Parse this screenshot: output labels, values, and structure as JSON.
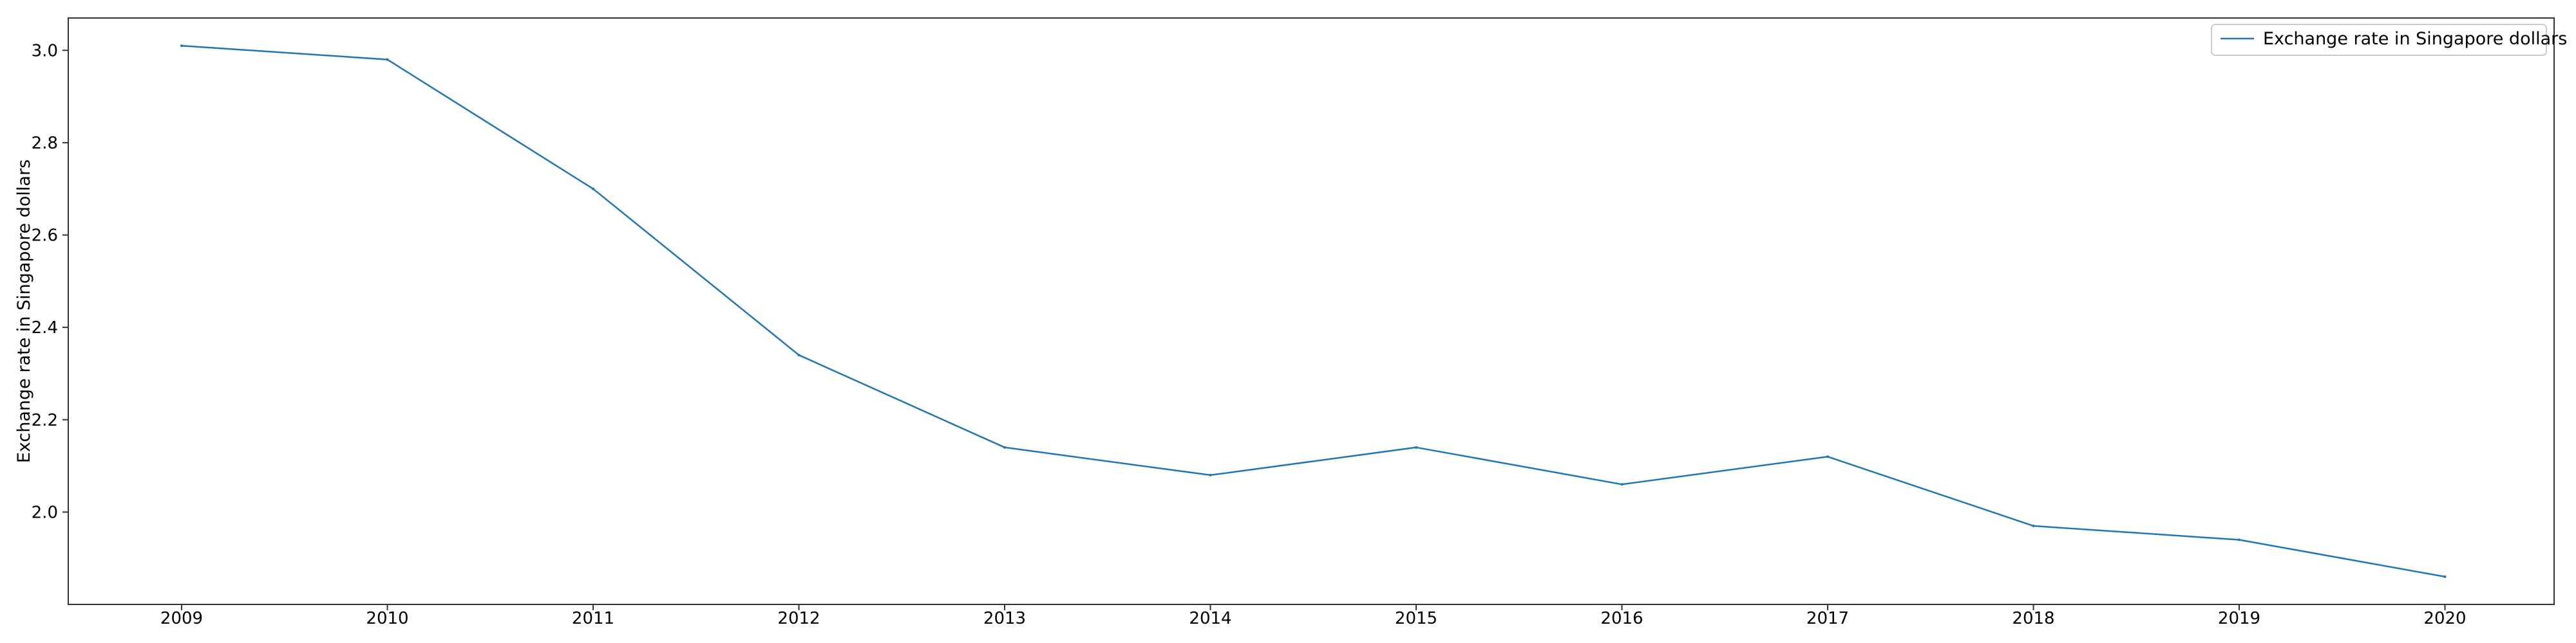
{
  "chart_data": {
    "type": "line",
    "title": "",
    "xlabel": "",
    "ylabel": "Exchange rate in Singapore dollars",
    "x": [
      "2009",
      "2010",
      "2011",
      "2012",
      "2013",
      "2014",
      "2015",
      "2016",
      "2017",
      "2018",
      "2019",
      "2020"
    ],
    "y_ticks": [
      "2.0",
      "2.2",
      "2.4",
      "2.6",
      "2.8",
      "3.0"
    ],
    "ylim": [
      1.8,
      3.07
    ],
    "grid": false,
    "legend_position": "top-right",
    "series": [
      {
        "name": "Exchange rate in Singapore dollars",
        "color": "#1f77b4",
        "values": [
          3.01,
          2.98,
          2.7,
          2.34,
          2.14,
          2.08,
          2.14,
          2.06,
          2.12,
          1.97,
          1.94,
          1.86
        ]
      }
    ]
  }
}
